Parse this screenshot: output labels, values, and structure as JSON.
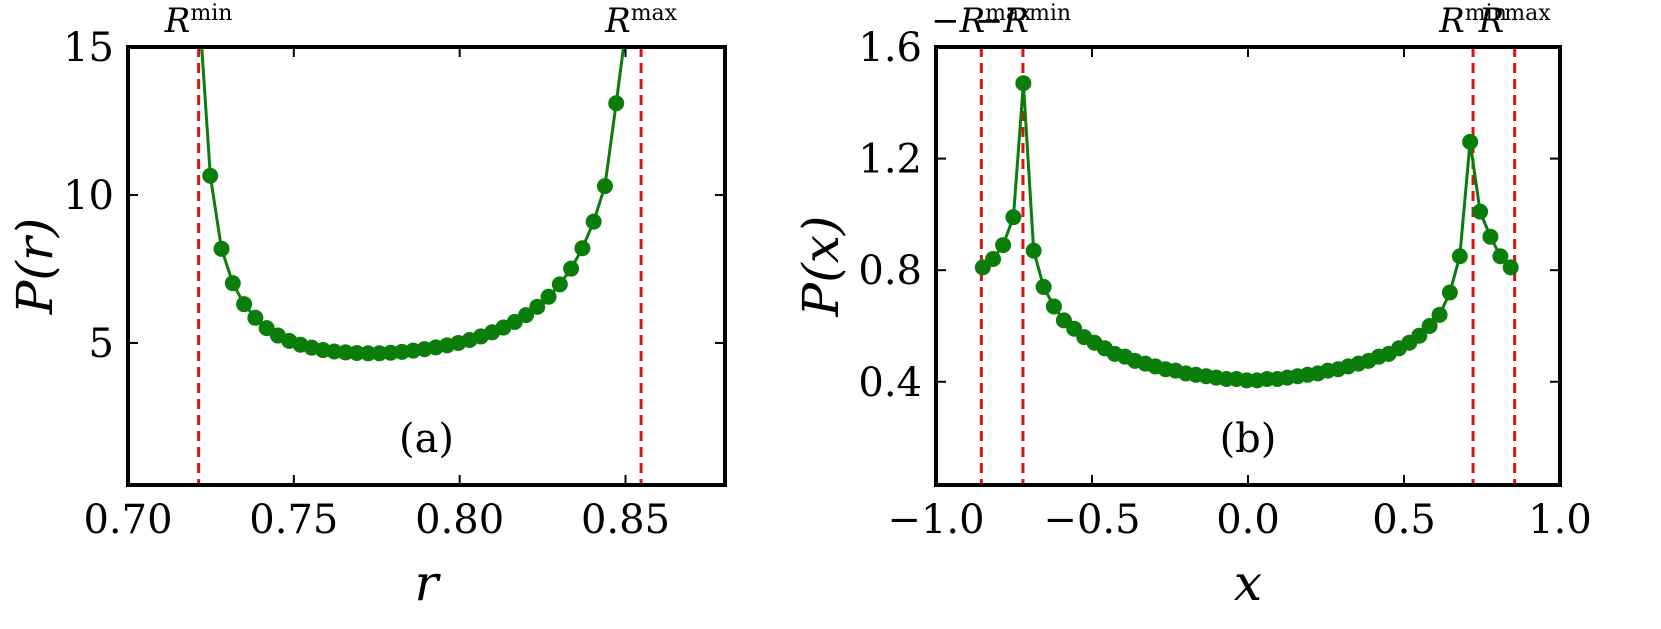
{
  "chart_data": [
    {
      "type": "line",
      "panel_label": "(a)",
      "xlabel": "r",
      "ylabel": "P(r)",
      "xlim": [
        0.7,
        0.88
      ],
      "ylim": [
        0.2,
        15
      ],
      "xticks": [
        0.7,
        0.75,
        0.8,
        0.85
      ],
      "xtick_labels": [
        "0.70",
        "0.75",
        "0.80",
        "0.85"
      ],
      "yticks": [
        5,
        10,
        15
      ],
      "ytick_labels": [
        "5",
        "10",
        "15"
      ],
      "colors": {
        "curve": "#0b7d0b",
        "marker": "#0b7d0b",
        "vline": "#e01010"
      },
      "vlines": [
        {
          "x": 0.7213,
          "base": "R",
          "sup": "min"
        },
        {
          "x": 0.8547,
          "base": "R",
          "sup": "max"
        }
      ],
      "series": [
        {
          "name": "P(r)",
          "points": [
            [
              0.7248,
              10.65
            ],
            [
              0.7282,
              8.18
            ],
            [
              0.7316,
              7.02
            ],
            [
              0.735,
              6.31
            ],
            [
              0.7384,
              5.85
            ],
            [
              0.7418,
              5.5
            ],
            [
              0.7452,
              5.25
            ],
            [
              0.7486,
              5.07
            ],
            [
              0.752,
              4.94
            ],
            [
              0.7554,
              4.84
            ],
            [
              0.7588,
              4.76
            ],
            [
              0.7622,
              4.71
            ],
            [
              0.7656,
              4.68
            ],
            [
              0.769,
              4.66
            ],
            [
              0.7724,
              4.65
            ],
            [
              0.7758,
              4.65
            ],
            [
              0.7792,
              4.67
            ],
            [
              0.7826,
              4.7
            ],
            [
              0.786,
              4.74
            ],
            [
              0.7894,
              4.79
            ],
            [
              0.7928,
              4.85
            ],
            [
              0.7962,
              4.92
            ],
            [
              0.7996,
              5.0
            ],
            [
              0.803,
              5.1
            ],
            [
              0.8064,
              5.22
            ],
            [
              0.8098,
              5.36
            ],
            [
              0.8132,
              5.52
            ],
            [
              0.8166,
              5.71
            ],
            [
              0.82,
              5.94
            ],
            [
              0.8234,
              6.22
            ],
            [
              0.8268,
              6.56
            ],
            [
              0.8302,
              6.98
            ],
            [
              0.8336,
              7.51
            ],
            [
              0.837,
              8.2
            ],
            [
              0.8404,
              9.1
            ],
            [
              0.8438,
              10.3
            ],
            [
              0.8472,
              13.1
            ]
          ]
        }
      ]
    },
    {
      "type": "line",
      "panel_label": "(b)",
      "xlabel": "x",
      "ylabel": "P(x)",
      "xlim": [
        -1.0,
        1.0
      ],
      "ylim": [
        0.03,
        1.6
      ],
      "xticks": [
        -1.0,
        -0.5,
        0.0,
        0.5,
        1.0
      ],
      "xtick_labels": [
        "−1.0",
        "−0.5",
        "0.0",
        "0.5",
        "1.0"
      ],
      "yticks": [
        0.4,
        0.8,
        1.2,
        1.6
      ],
      "ytick_labels": [
        "0.4",
        "0.8",
        "1.2",
        "1.6"
      ],
      "colors": {
        "curve": "#0b7d0b",
        "marker": "#0b7d0b",
        "vline": "#e01010"
      },
      "vlines": [
        {
          "x": -0.8547,
          "base": "−R",
          "sup": "max"
        },
        {
          "x": -0.7213,
          "base": "−R",
          "sup": "min"
        },
        {
          "x": 0.7213,
          "base": "R",
          "sup": "min"
        },
        {
          "x": 0.8547,
          "base": "R",
          "sup": "max"
        }
      ],
      "series": [
        {
          "name": "P(x)",
          "points": [
            [
              -0.85,
              0.81
            ],
            [
              -0.817,
              0.84
            ],
            [
              -0.785,
              0.89
            ],
            [
              -0.752,
              0.99
            ],
            [
              -0.72,
              1.47
            ],
            [
              -0.687,
              0.87
            ],
            [
              -0.655,
              0.74
            ],
            [
              -0.622,
              0.67
            ],
            [
              -0.59,
              0.62
            ],
            [
              -0.557,
              0.59
            ],
            [
              -0.525,
              0.56
            ],
            [
              -0.492,
              0.54
            ],
            [
              -0.459,
              0.52
            ],
            [
              -0.427,
              0.5
            ],
            [
              -0.394,
              0.49
            ],
            [
              -0.362,
              0.475
            ],
            [
              -0.329,
              0.465
            ],
            [
              -0.297,
              0.455
            ],
            [
              -0.264,
              0.445
            ],
            [
              -0.232,
              0.44
            ],
            [
              -0.199,
              0.43
            ],
            [
              -0.167,
              0.425
            ],
            [
              -0.134,
              0.42
            ],
            [
              -0.102,
              0.415
            ],
            [
              -0.069,
              0.41
            ],
            [
              -0.037,
              0.41
            ],
            [
              -0.004,
              0.405
            ],
            [
              0.029,
              0.405
            ],
            [
              0.061,
              0.41
            ],
            [
              0.094,
              0.41
            ],
            [
              0.126,
              0.415
            ],
            [
              0.159,
              0.42
            ],
            [
              0.191,
              0.425
            ],
            [
              0.224,
              0.43
            ],
            [
              0.256,
              0.44
            ],
            [
              0.289,
              0.445
            ],
            [
              0.321,
              0.455
            ],
            [
              0.354,
              0.465
            ],
            [
              0.386,
              0.475
            ],
            [
              0.419,
              0.49
            ],
            [
              0.451,
              0.5
            ],
            [
              0.484,
              0.52
            ],
            [
              0.517,
              0.54
            ],
            [
              0.549,
              0.565
            ],
            [
              0.582,
              0.6
            ],
            [
              0.614,
              0.64
            ],
            [
              0.647,
              0.72
            ],
            [
              0.679,
              0.85
            ],
            [
              0.712,
              1.26
            ],
            [
              0.744,
              1.01
            ],
            [
              0.777,
              0.92
            ],
            [
              0.809,
              0.85
            ],
            [
              0.842,
              0.81
            ]
          ]
        }
      ]
    }
  ]
}
